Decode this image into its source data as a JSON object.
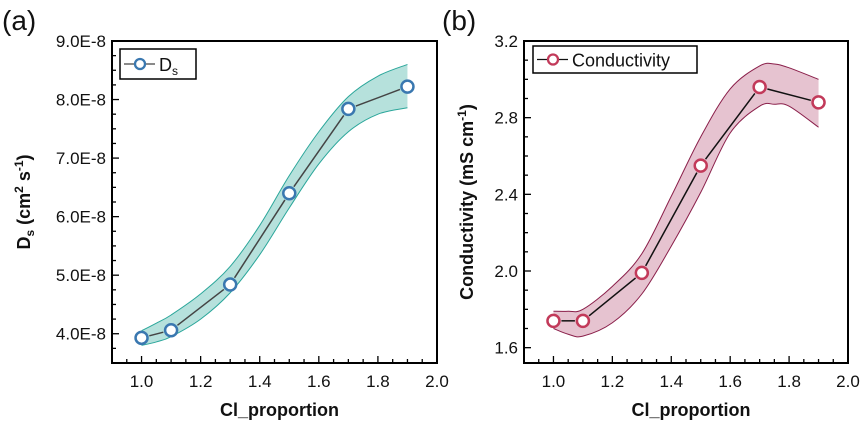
{
  "chart_data": [
    {
      "type": "line",
      "panel_label": "(a)",
      "title": "",
      "xlabel": "Cl_proportion",
      "ylabel_main": "D",
      "ylabel_sub": "s",
      "ylabel_units_pre": " (cm",
      "ylabel_units_sup1": "2",
      "ylabel_units_mid": " s",
      "ylabel_units_sup2": "-1",
      "ylabel_units_post": ")",
      "xlim": [
        0.9,
        2.0
      ],
      "ylim": [
        3.5e-08,
        9e-08
      ],
      "xticks": [
        1.0,
        1.2,
        1.4,
        1.6,
        1.8,
        2.0
      ],
      "xtick_labels": [
        "1.0",
        "1.2",
        "1.4",
        "1.6",
        "1.8",
        "2.0"
      ],
      "yticks": [
        4e-08,
        5e-08,
        6e-08,
        7e-08,
        8e-08,
        9e-08
      ],
      "ytick_labels": [
        "4.0E-8",
        "5.0E-8",
        "6.0E-8",
        "7.0E-8",
        "8.0E-8",
        "9.0E-8"
      ],
      "legend": {
        "label_main": "D",
        "label_sub": "s",
        "position": "top-left"
      },
      "series": [
        {
          "name": "Ds",
          "color": "#3a78b0",
          "line_color": "#444444",
          "band_color": "#a9dcd6",
          "band_edge_color": "#2aa69a",
          "x": [
            1.0,
            1.1,
            1.3,
            1.5,
            1.7,
            1.9
          ],
          "y": [
            3.93e-08,
            4.06e-08,
            4.84e-08,
            6.4e-08,
            7.84e-08,
            8.22e-08
          ],
          "band_x": [
            1.0,
            1.05,
            1.1,
            1.2,
            1.3,
            1.4,
            1.5,
            1.6,
            1.7,
            1.8,
            1.9
          ],
          "band_upper": [
            4.05e-08,
            4.18e-08,
            4.32e-08,
            4.68e-08,
            5.15e-08,
            5.85e-08,
            6.7e-08,
            7.45e-08,
            8.05e-08,
            8.4e-08,
            8.6e-08
          ],
          "band_lower": [
            3.8e-08,
            3.86e-08,
            3.95e-08,
            4.25e-08,
            4.7e-08,
            5.35e-08,
            6.15e-08,
            6.9e-08,
            7.45e-08,
            7.75e-08,
            7.86e-08
          ]
        }
      ]
    },
    {
      "type": "line",
      "panel_label": "(b)",
      "title": "",
      "xlabel": "Cl_proportion",
      "ylabel_main": "Conductivity (mS cm",
      "ylabel_sup": "-1",
      "ylabel_post": ")",
      "xlim": [
        0.9,
        2.0
      ],
      "ylim": [
        1.52,
        3.2
      ],
      "xticks": [
        1.0,
        1.2,
        1.4,
        1.6,
        1.8,
        2.0
      ],
      "xtick_labels": [
        "1.0",
        "1.2",
        "1.4",
        "1.6",
        "1.8",
        "2.0"
      ],
      "yticks": [
        1.6,
        2.0,
        2.4,
        2.8,
        3.2
      ],
      "ytick_labels": [
        "1.6",
        "2.0",
        "2.4",
        "2.8",
        "3.2"
      ],
      "legend": {
        "label_main": "Conductivity",
        "position": "top-left"
      },
      "series": [
        {
          "name": "Conductivity",
          "color": "#c23a5a",
          "line_color": "#111111",
          "band_color": "#e2b8c8",
          "band_edge_color": "#8a1f4a",
          "x": [
            1.0,
            1.1,
            1.3,
            1.5,
            1.7,
            1.9
          ],
          "y": [
            1.74,
            1.74,
            1.99,
            2.55,
            2.96,
            2.88
          ],
          "band_x": [
            1.0,
            1.05,
            1.1,
            1.2,
            1.3,
            1.4,
            1.5,
            1.6,
            1.7,
            1.75,
            1.8,
            1.9
          ],
          "band_upper": [
            1.79,
            1.79,
            1.8,
            1.92,
            2.09,
            2.39,
            2.7,
            2.95,
            3.07,
            3.08,
            3.06,
            3.0
          ],
          "band_lower": [
            1.7,
            1.67,
            1.66,
            1.73,
            1.88,
            2.13,
            2.41,
            2.72,
            2.86,
            2.87,
            2.86,
            2.75
          ]
        }
      ]
    }
  ]
}
